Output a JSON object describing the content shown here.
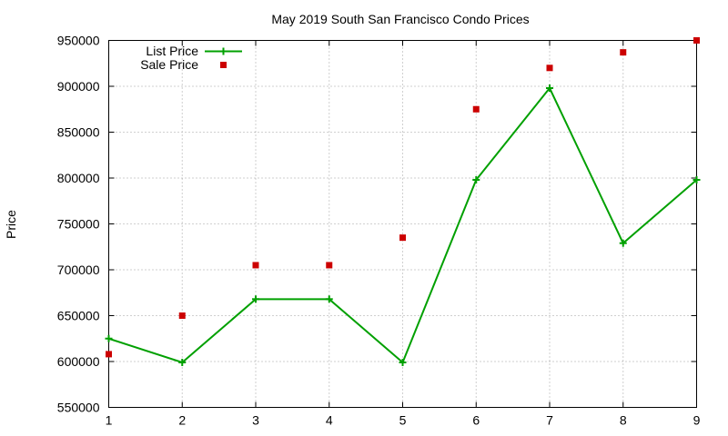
{
  "chart_data": {
    "type": "line",
    "title": "May 2019 South San Francisco Condo Prices",
    "xlabel": "",
    "ylabel": "Price",
    "x": [
      1,
      2,
      3,
      4,
      5,
      6,
      7,
      8,
      9
    ],
    "xlim": [
      1,
      9
    ],
    "ylim": [
      550000,
      950000
    ],
    "xticks": [
      1,
      2,
      3,
      4,
      5,
      6,
      7,
      8,
      9
    ],
    "yticks": [
      550000,
      600000,
      650000,
      700000,
      750000,
      800000,
      850000,
      900000,
      950000
    ],
    "grid": true,
    "legend_position": "top-left",
    "series": [
      {
        "name": "List Price",
        "style": "line-with-plus-markers",
        "color": "#00a000",
        "values": [
          625000,
          599000,
          668000,
          668000,
          599000,
          798000,
          898000,
          729000,
          798000
        ]
      },
      {
        "name": "Sale Price",
        "style": "square-points",
        "color": "#cc0000",
        "values": [
          608000,
          650000,
          705000,
          705000,
          735000,
          875000,
          920000,
          937000,
          950000
        ]
      }
    ]
  }
}
